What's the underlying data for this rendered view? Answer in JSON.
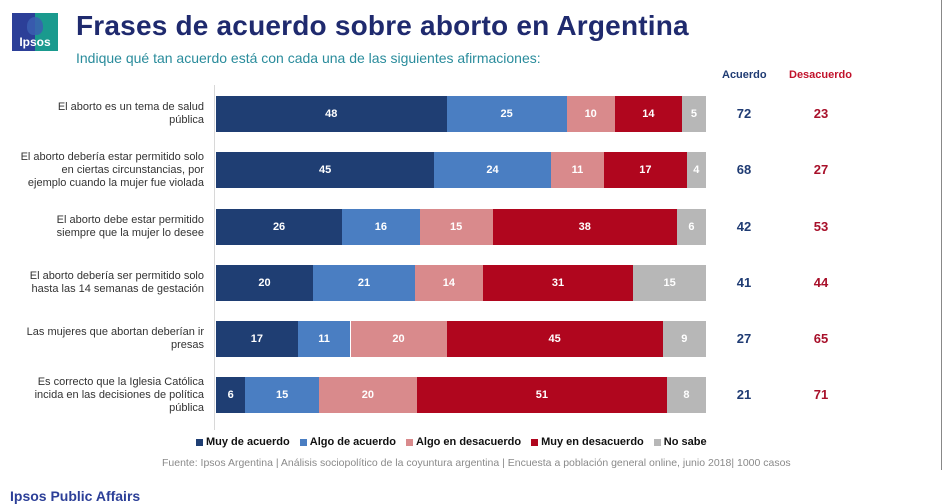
{
  "header": {
    "logo_text": "Ipsos",
    "title": "Frases de acuerdo sobre aborto en Argentina",
    "subtitle": "Indique qué tan acuerdo está con cada una de las siguientes afirmaciones:"
  },
  "columns": {
    "acuerdo_label": "Acuerdo",
    "desacuerdo_label": "Desacuerdo"
  },
  "chart_data": {
    "type": "bar",
    "orientation": "horizontal-stacked-100",
    "title": "Frases de acuerdo sobre aborto en Argentina",
    "subtitle": "Indique qué tan acuerdo está con cada una de las siguientes afirmaciones:",
    "categories": [
      "El aborto es un tema de salud pública",
      "El aborto debería estar permitido solo en ciertas circunstancias, por ejemplo cuando la mujer fue violada",
      "El aborto debe estar permitido siempre que la mujer lo desee",
      "El aborto debería ser permitido solo hasta las 14 semanas de gestación",
      "Las mujeres que abortan deberían ir presas",
      "Es correcto que la Iglesia Católica incida en las decisiones de política pública"
    ],
    "series": [
      {
        "name": "Muy de acuerdo",
        "color": "#1f3e73",
        "values": [
          48,
          45,
          26,
          20,
          17,
          6
        ]
      },
      {
        "name": "Algo de acuerdo",
        "color": "#4a7ec2",
        "values": [
          25,
          24,
          16,
          21,
          11,
          15
        ]
      },
      {
        "name": "Algo en desacuerdo",
        "color": "#d98a8c",
        "values": [
          10,
          11,
          15,
          14,
          20,
          20
        ]
      },
      {
        "name": "Muy en desacuerdo",
        "color": "#b0061e",
        "values": [
          14,
          17,
          38,
          31,
          45,
          51
        ]
      },
      {
        "name": "No sabe",
        "color": "#b7b7b7",
        "values": [
          5,
          4,
          6,
          15,
          9,
          8
        ]
      }
    ],
    "totals": {
      "acuerdo": [
        72,
        68,
        42,
        41,
        27,
        21
      ],
      "desacuerdo": [
        23,
        27,
        53,
        44,
        65,
        71
      ]
    },
    "legend_position": "bottom",
    "grid": false
  },
  "source": "Fuente: Ipsos Argentina | Análisis sociopolítico de la coyuntura argentina | Encuesta a población general online, junio 2018| 1000 casos",
  "footer": "Ipsos Public Affairs"
}
